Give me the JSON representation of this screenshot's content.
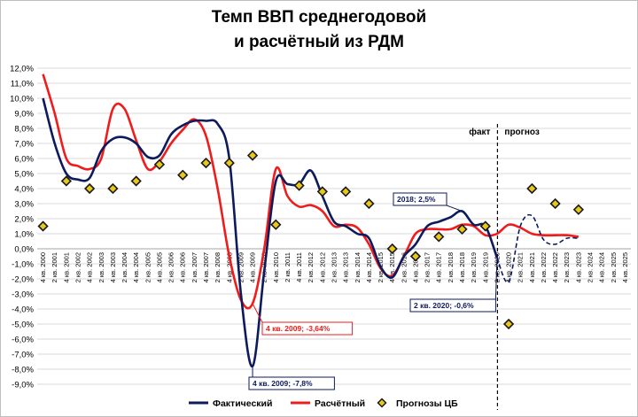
{
  "title_line_1": "Темп ВВП среднегодовой",
  "title_line_2": "и расчётный из РДМ",
  "zone_labels": {
    "fact": "факт",
    "forecast": "прогноз"
  },
  "colors": {
    "actual": "#0d1a5c",
    "calculated": "#ee1c1c",
    "cb": "#1a1a1a",
    "cb_fill": "#e8c81a",
    "grid": "#d9d9d9"
  },
  "chart_data": {
    "type": "line",
    "y_axis": {
      "ylim": [
        -9.0,
        12.0
      ],
      "step": 1.0,
      "tick_labels": [
        "12,0%",
        "11,0%",
        "10,0%",
        "9,0%",
        "8,0%",
        "7,0%",
        "6,0%",
        "5,0%",
        "4,0%",
        "3,0%",
        "2,0%",
        "1,0%",
        "0,0%",
        "-1,0%",
        "-2,0%",
        "-3,0%",
        "-4,0%",
        "-5,0%",
        "-6,0%",
        "-7,0%",
        "-8,0%",
        "-9,0%"
      ]
    },
    "x_axis": {
      "tick_labels": [
        "4 кв. 2000",
        "2 кв. 2001",
        "4 кв. 2001",
        "2 кв. 2002",
        "4 кв. 2002",
        "2 кв. 2003",
        "4 кв. 2003",
        "2 кв. 2004",
        "4 кв. 2004",
        "2 кв. 2005",
        "4 кв. 2005",
        "2 кв. 2006",
        "4 кв. 2006",
        "2 кв. 2007",
        "4 кв. 2007",
        "2 кв. 2008",
        "4 кв. 2008",
        "2 кв. 2009",
        "4 кв. 2009",
        "2 кв. 2010",
        "4 кв. 2010",
        "2 кв. 2011",
        "4 кв. 2011",
        "2 кв. 2012",
        "4 кв. 2012",
        "2 кв. 2013",
        "4 кв. 2013",
        "2 кв. 2014",
        "4 кв. 2014",
        "2 кв. 2015",
        "4 кв. 2015",
        "2 кв. 2016",
        "4 кв. 2016",
        "2 кв. 2017",
        "4 кв. 2017",
        "2 кв. 2018",
        "4 кв. 2018",
        "2 кв. 2019",
        "4 кв. 2019",
        "2 кв. 2020",
        "4 кв. 2020",
        "2 кв. 2021",
        "4 кв. 2021",
        "2 кв. 2022",
        "4 кв. 2022",
        "2 кв. 2023",
        "4 кв. 2023",
        "2 кв. 2024",
        "4 кв. 2024",
        "2 кв. 2025",
        "4 кв. 2025"
      ]
    },
    "fact_forecast_boundary": "2 кв. 2020",
    "series": [
      {
        "name": "Фактический",
        "style": "solid-then-dashed",
        "points": [
          [
            "4 кв. 2000",
            10.0
          ],
          [
            "2 кв. 2001",
            7.0
          ],
          [
            "4 кв. 2001",
            5.0
          ],
          [
            "2 кв. 2002",
            4.6
          ],
          [
            "4 кв. 2002",
            4.7
          ],
          [
            "2 кв. 2003",
            6.5
          ],
          [
            "4 кв. 2003",
            7.3
          ],
          [
            "2 кв. 2004",
            7.4
          ],
          [
            "4 кв. 2004",
            7.0
          ],
          [
            "2 кв. 2005",
            6.1
          ],
          [
            "4 кв. 2005",
            6.2
          ],
          [
            "2 кв. 2006",
            7.6
          ],
          [
            "4 кв. 2006",
            8.2
          ],
          [
            "2 кв. 2007",
            8.5
          ],
          [
            "4 кв. 2007",
            8.5
          ],
          [
            "2 кв. 2008",
            8.3
          ],
          [
            "4 кв. 2008",
            6.0
          ],
          [
            "2 кв. 2009",
            -3.0
          ],
          [
            "4 кв. 2009",
            -7.8
          ],
          [
            "2 кв. 2010",
            -1.5
          ],
          [
            "4 кв. 2010",
            4.5
          ],
          [
            "2 кв. 2011",
            4.3
          ],
          [
            "4 кв. 2011",
            4.3
          ],
          [
            "2 кв. 2012",
            5.2
          ],
          [
            "4 кв. 2012",
            3.5
          ],
          [
            "2 кв. 2013",
            1.8
          ],
          [
            "4 кв. 2013",
            1.5
          ],
          [
            "2 кв. 2014",
            1.0
          ],
          [
            "4 кв. 2014",
            0.7
          ],
          [
            "2 кв. 2015",
            -1.2
          ],
          [
            "4 кв. 2015",
            -1.9
          ],
          [
            "2 кв. 2016",
            -0.5
          ],
          [
            "4 кв. 2016",
            0.3
          ],
          [
            "2 кв. 2017",
            1.5
          ],
          [
            "4 кв. 2017",
            1.8
          ],
          [
            "2 кв. 2018",
            2.1
          ],
          [
            "4 кв. 2018",
            2.5
          ],
          [
            "2 кв. 2019",
            1.6
          ],
          [
            "4 кв. 2019",
            1.5
          ],
          [
            "2 кв. 2020",
            -0.6
          ]
        ],
        "forecast_points": [
          [
            "2 кв. 2020",
            -0.6
          ],
          [
            "4 кв. 2020",
            -2.2
          ],
          [
            "2 кв. 2021",
            1.5
          ],
          [
            "4 кв. 2021",
            2.2
          ],
          [
            "2 кв. 2022",
            0.6
          ],
          [
            "4 кв. 2022",
            0.3
          ],
          [
            "2 кв. 2023",
            0.7
          ],
          [
            "4 кв. 2023",
            0.7
          ]
        ]
      },
      {
        "name": "Расчётный",
        "points": [
          [
            "4 кв. 2000",
            11.6
          ],
          [
            "2 кв. 2001",
            9.0
          ],
          [
            "4 кв. 2001",
            6.0
          ],
          [
            "2 кв. 2002",
            5.5
          ],
          [
            "4 кв. 2002",
            5.3
          ],
          [
            "2 кв. 2003",
            6.0
          ],
          [
            "4 кв. 2003",
            9.3
          ],
          [
            "2 кв. 2004",
            9.3
          ],
          [
            "4 кв. 2004",
            7.2
          ],
          [
            "2 кв. 2005",
            5.3
          ],
          [
            "4 кв. 2005",
            5.8
          ],
          [
            "2 кв. 2006",
            7.0
          ],
          [
            "4 кв. 2006",
            7.9
          ],
          [
            "2 кв. 2007",
            8.6
          ],
          [
            "4 кв. 2007",
            7.5
          ],
          [
            "2 кв. 2008",
            4.0
          ],
          [
            "4 кв. 2008",
            -0.5
          ],
          [
            "2 кв. 2009",
            -3.4
          ],
          [
            "4 кв. 2009",
            -3.64
          ],
          [
            "2 кв. 2010",
            0.0
          ],
          [
            "4 кв. 2010",
            5.3
          ],
          [
            "2 кв. 2011",
            3.5
          ],
          [
            "4 кв. 2011",
            2.8
          ],
          [
            "2 кв. 2012",
            2.9
          ],
          [
            "4 кв. 2012",
            2.5
          ],
          [
            "2 кв. 2013",
            1.5
          ],
          [
            "4 кв. 2013",
            1.6
          ],
          [
            "2 кв. 2014",
            1.4
          ],
          [
            "4 кв. 2014",
            0.3
          ],
          [
            "2 кв. 2015",
            -1.3
          ],
          [
            "4 кв. 2015",
            -1.8
          ],
          [
            "2 кв. 2016",
            -0.5
          ],
          [
            "4 кв. 2016",
            1.0
          ],
          [
            "2 кв. 2017",
            1.3
          ],
          [
            "4 кв. 2017",
            1.3
          ],
          [
            "2 кв. 2018",
            1.3
          ],
          [
            "4 кв. 2018",
            1.6
          ],
          [
            "2 кв. 2019",
            1.5
          ],
          [
            "4 кв. 2019",
            0.9
          ],
          [
            "2 кв. 2020",
            1.0
          ],
          [
            "4 кв. 2020",
            1.6
          ],
          [
            "2 кв. 2021",
            1.4
          ],
          [
            "4 кв. 2021",
            1.0
          ],
          [
            "2 кв. 2022",
            0.9
          ],
          [
            "4 кв. 2022",
            0.9
          ],
          [
            "2 кв. 2023",
            0.9
          ],
          [
            "4 кв. 2023",
            0.8
          ]
        ]
      },
      {
        "name": "Прогнозы ЦБ",
        "style": "markers",
        "points": [
          [
            "4 кв. 2000",
            1.5
          ],
          [
            "4 кв. 2001",
            4.5
          ],
          [
            "4 кв. 2002",
            4.0
          ],
          [
            "4 кв. 2003",
            4.0
          ],
          [
            "4 кв. 2004",
            4.5
          ],
          [
            "4 кв. 2005",
            5.6
          ],
          [
            "4 кв. 2006",
            4.9
          ],
          [
            "4 кв. 2007",
            5.7
          ],
          [
            "4 кв. 2008",
            5.7
          ],
          [
            "4 кв. 2009",
            6.2
          ],
          [
            "4 кв. 2010",
            1.6
          ],
          [
            "4 кв. 2011",
            4.2
          ],
          [
            "4 кв. 2012",
            3.8
          ],
          [
            "4 кв. 2013",
            3.8
          ],
          [
            "4 кв. 2014",
            3.0
          ],
          [
            "4 кв. 2015",
            0.0
          ],
          [
            "4 кв. 2016",
            -0.5
          ],
          [
            "4 кв. 2017",
            0.8
          ],
          [
            "4 кв. 2018",
            1.3
          ],
          [
            "4 кв. 2019",
            1.5
          ],
          [
            "4 кв. 2020",
            -5.0
          ],
          [
            "4 кв. 2021",
            4.0
          ],
          [
            "4 кв. 2022",
            3.0
          ],
          [
            "4 кв. 2023",
            2.6
          ]
        ]
      }
    ],
    "annotations": [
      {
        "text": "4 кв. 2009; -3,64%",
        "series": "Расчётный",
        "at": [
          "4 кв. 2009",
          -3.64
        ]
      },
      {
        "text": "4 кв. 2009; -7,8%",
        "series": "Фактический",
        "at": [
          "4 кв. 2009",
          -7.8
        ]
      },
      {
        "text": "2018; 2,5%",
        "series": "Фактический",
        "at": [
          "4 кв. 2018",
          2.5
        ]
      },
      {
        "text": "2 кв. 2020; -0,6%",
        "series": "Фактический",
        "at": [
          "2 кв. 2020",
          -0.6
        ]
      }
    ],
    "legend": {
      "placement": "bottom",
      "entries": [
        "Фактический",
        "Расчётный",
        "Прогнозы ЦБ"
      ]
    }
  }
}
